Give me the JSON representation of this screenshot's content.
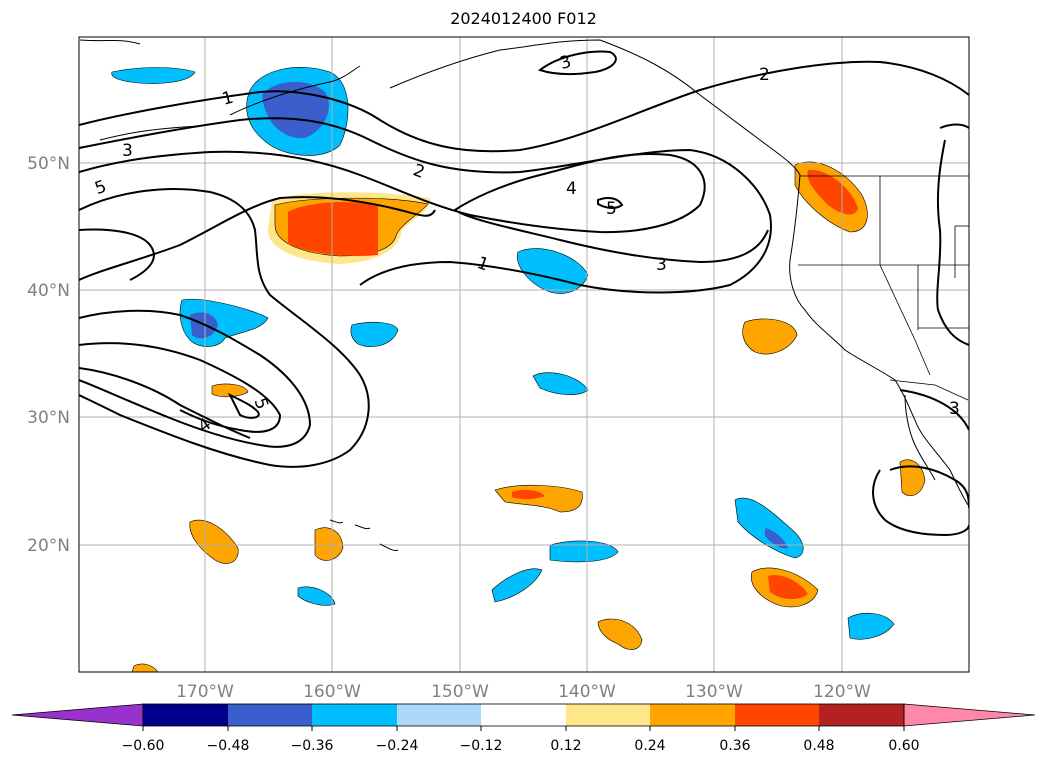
{
  "title": "2024012400 F012",
  "map": {
    "lon_labels": [
      "170°W",
      "160°W",
      "150°W",
      "140°W",
      "130°W",
      "120°W"
    ],
    "lat_labels": [
      "50°N",
      "40°N",
      "30°N",
      "20°N"
    ],
    "contour_labels": [
      "1",
      "1",
      "2",
      "2",
      "3",
      "3",
      "3",
      "3",
      "4",
      "4",
      "5",
      "5",
      "5"
    ]
  },
  "colorbar": {
    "labels": [
      "−0.60",
      "−0.48",
      "−0.36",
      "−0.24",
      "−0.12",
      "0.12",
      "0.24",
      "0.36",
      "0.48",
      "0.60"
    ],
    "colors": [
      "#9932cc",
      "#00008b",
      "#3a5fcd",
      "#00bfff",
      "#add8f7",
      "#ffffff",
      "#ffe68a",
      "#ffa500",
      "#ff4500",
      "#b22222",
      "#ff88aa"
    ]
  }
}
